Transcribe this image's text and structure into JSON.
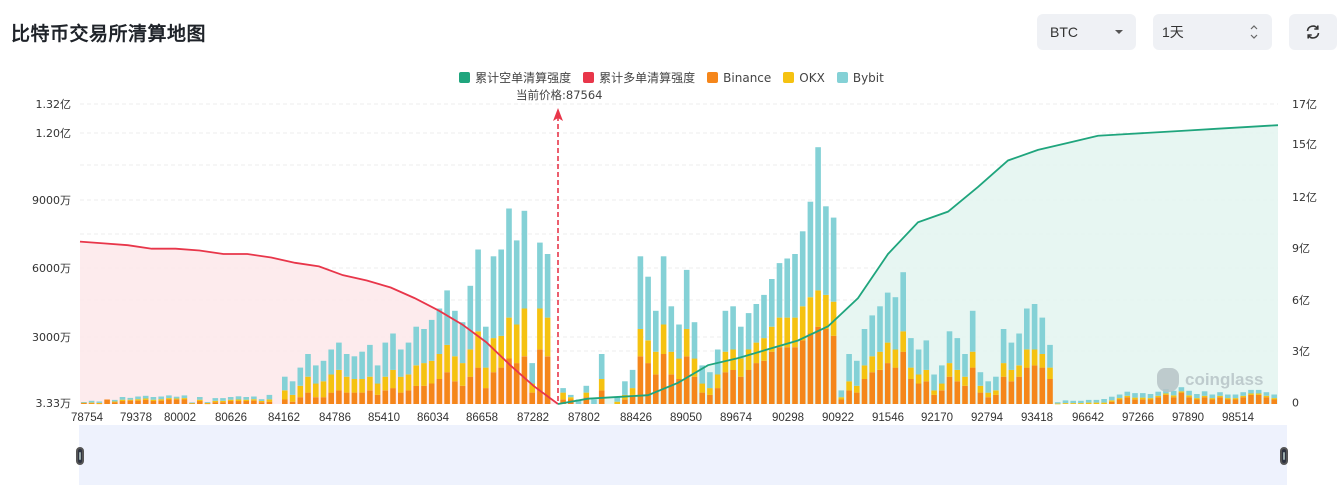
{
  "header": {
    "title": "比特币交易所清算地图",
    "symbol_select": "BTC",
    "period_select": "1天",
    "refresh_icon": "refresh-icon"
  },
  "legend": [
    {
      "label": "累计空单清算强度",
      "color": "#1fa57d"
    },
    {
      "label": "累计多单清算强度",
      "color": "#e8364a"
    },
    {
      "label": "Binance",
      "color": "#f5861a"
    },
    {
      "label": "OKX",
      "color": "#f5c211"
    },
    {
      "label": "Bybit",
      "color": "#84d1d6"
    }
  ],
  "current_price_label": "当前价格:87564",
  "watermark": "coinglass",
  "chart_data": {
    "type": "bar",
    "title": "比特币交易所清算地图",
    "xlabel": "",
    "ylabel": "",
    "current_price": 87564,
    "left_axis": {
      "ticks": [
        "3.33万",
        "3000万",
        "6000万",
        "9000万",
        "1.20亿",
        "1.32亿"
      ],
      "ylim": [
        0,
        132000000
      ]
    },
    "right_axis": {
      "ticks": [
        "0",
        "3亿",
        "6亿",
        "9亿",
        "12亿",
        "15亿",
        "17亿"
      ],
      "ylim": [
        0,
        1700000000
      ]
    },
    "x_tick_labels": [
      "78754",
      "79378",
      "80002",
      "80626",
      "84162",
      "84786",
      "85410",
      "86034",
      "86658",
      "87282",
      "87802",
      "88426",
      "89050",
      "89674",
      "90298",
      "90922",
      "91546",
      "92170",
      "92794",
      "93418",
      "96642",
      "97266",
      "97890",
      "98514"
    ],
    "bar_series_unit": "万",
    "series": [
      {
        "name": "Binance",
        "values": [
          50,
          40,
          30,
          200,
          80,
          130,
          150,
          150,
          180,
          130,
          150,
          200,
          200,
          200,
          40,
          130,
          30,
          80,
          80,
          130,
          130,
          130,
          150,
          80,
          100,
          0,
          200,
          100,
          300,
          500,
          300,
          300,
          500,
          600,
          500,
          500,
          500,
          600,
          400,
          600,
          700,
          500,
          600,
          800,
          800,
          900,
          1100,
          1400,
          1000,
          800,
          1200,
          1600,
          700,
          1400,
          1600,
          2000,
          1800,
          2100,
          500,
          2400,
          2100,
          0,
          200,
          200,
          0,
          300,
          0,
          600,
          0,
          0,
          200,
          400,
          2100,
          1800,
          1300,
          2200,
          1300,
          1100,
          2100,
          1200,
          500,
          400,
          700,
          1400,
          1500,
          1200,
          1500,
          1800,
          1900,
          2300,
          2500,
          2500,
          2500,
          2800,
          3100,
          3400,
          3300,
          3000,
          200,
          600,
          500,
          1100,
          1400,
          1500,
          1800,
          1600,
          2300,
          1100,
          900,
          1000,
          400,
          600,
          1200,
          1000,
          800,
          1600,
          500,
          300,
          400,
          1200,
          1000,
          1200,
          1600,
          1700,
          1600,
          1100,
          0,
          0,
          0,
          0,
          0,
          0,
          0,
          100,
          200,
          300,
          200,
          200,
          200,
          300,
          400,
          300,
          500,
          300,
          200,
          300,
          200,
          300,
          200,
          200,
          300,
          400,
          400,
          300,
          200
        ],
        "note": "approximate per-bar values (万), left axis"
      },
      {
        "name": "OKX",
        "values": [
          20,
          20,
          20,
          0,
          30,
          60,
          40,
          60,
          60,
          60,
          60,
          60,
          40,
          60,
          10,
          60,
          20,
          60,
          60,
          60,
          70,
          60,
          60,
          50,
          100,
          0,
          400,
          300,
          500,
          700,
          600,
          700,
          800,
          900,
          700,
          600,
          600,
          600,
          500,
          600,
          800,
          700,
          700,
          900,
          1000,
          1000,
          1100,
          1200,
          1100,
          1000,
          1200,
          1600,
          900,
          1500,
          1400,
          1800,
          1700,
          2100,
          400,
          1800,
          1700,
          0,
          300,
          100,
          0,
          200,
          0,
          500,
          0,
          100,
          200,
          300,
          1200,
          1000,
          1000,
          1300,
          1000,
          900,
          1200,
          800,
          400,
          300,
          600,
          900,
          900,
          800,
          900,
          900,
          1000,
          1100,
          1300,
          1300,
          1300,
          1500,
          1600,
          1600,
          1500,
          1500,
          100,
          400,
          300,
          600,
          700,
          800,
          900,
          800,
          900,
          500,
          400,
          500,
          200,
          300,
          600,
          500,
          400,
          700,
          300,
          200,
          200,
          600,
          500,
          500,
          800,
          700,
          600,
          500,
          20,
          40,
          40,
          40,
          60,
          60,
          60,
          60,
          60,
          60,
          80,
          80,
          60,
          60,
          60,
          80,
          60,
          80,
          60,
          60,
          60,
          60,
          60,
          60,
          60,
          60,
          60,
          60,
          60,
          40
        ],
        "note": "approximate per-bar values (万)"
      },
      {
        "name": "Bybit",
        "values": [
          20,
          80,
          60,
          0,
          70,
          120,
          80,
          120,
          120,
          120,
          120,
          120,
          80,
          120,
          20,
          120,
          40,
          120,
          120,
          120,
          140,
          120,
          120,
          80,
          200,
          0,
          600,
          600,
          800,
          1000,
          800,
          900,
          1100,
          1200,
          1000,
          1000,
          1200,
          1400,
          800,
          1500,
          1600,
          1200,
          1400,
          1700,
          1500,
          1800,
          2000,
          2400,
          2000,
          1800,
          2800,
          3600,
          1800,
          3600,
          3800,
          4800,
          3700,
          4300,
          900,
          2900,
          2800,
          0,
          200,
          100,
          200,
          300,
          200,
          1100,
          0,
          200,
          600,
          800,
          3200,
          2800,
          1800,
          3000,
          2000,
          1500,
          2600,
          1600,
          800,
          700,
          1100,
          1800,
          1900,
          1400,
          1600,
          1700,
          1900,
          2100,
          2400,
          2600,
          2800,
          3300,
          4200,
          6300,
          3900,
          3700,
          300,
          1200,
          1100,
          1600,
          1800,
          2000,
          2200,
          2300,
          2600,
          1300,
          1100,
          1300,
          700,
          800,
          1400,
          1400,
          1000,
          1800,
          600,
          500,
          600,
          1500,
          1200,
          1400,
          1800,
          2000,
          1600,
          1000,
          60,
          120,
          100,
          100,
          120,
          120,
          160,
          160,
          160,
          180,
          200,
          200,
          180,
          180,
          200,
          200,
          180,
          200,
          180,
          200,
          160,
          160,
          160,
          160,
          160,
          160,
          160,
          160,
          160,
          60
        ],
        "note": "approximate per-bar values (万)"
      },
      {
        "name": "累计多单清算强度",
        "axis": "right",
        "x_range": [
          78754,
          87564
        ],
        "values_yi": [
          9.2,
          9.1,
          9.0,
          8.8,
          8.8,
          8.7,
          8.5,
          8.5,
          8.3,
          8.0,
          7.8,
          7.3,
          7.0,
          6.6,
          6.0,
          5.3,
          4.5,
          3.5,
          2.2,
          1.0,
          0
        ]
      },
      {
        "name": "累计空单清算强度",
        "axis": "right",
        "x_range": [
          87564,
          98514
        ],
        "values_yi": [
          0,
          0.3,
          0.4,
          0.5,
          1.2,
          2.2,
          2.6,
          3.1,
          3.6,
          4.4,
          6.0,
          8.5,
          10.3,
          10.9,
          12.3,
          13.8,
          14.4,
          14.8,
          15.2,
          15.3,
          15.4,
          15.5,
          15.6,
          15.7,
          15.8
        ]
      }
    ]
  }
}
